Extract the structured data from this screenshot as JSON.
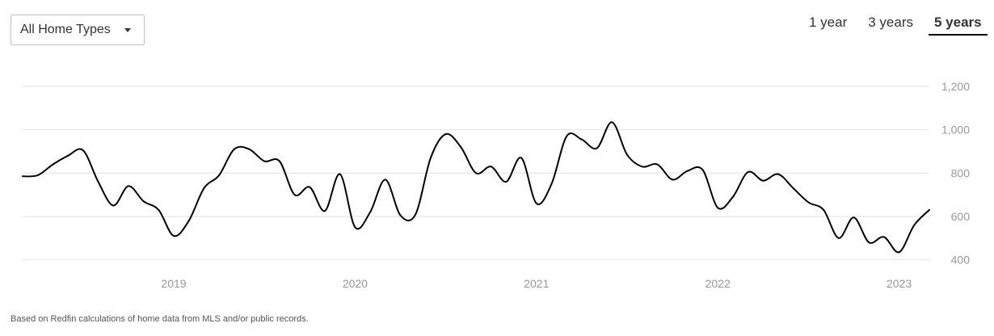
{
  "filter": {
    "selected": "All Home Types",
    "icon": "caret-down-icon"
  },
  "range_tabs": [
    {
      "label": "1 year",
      "active": false
    },
    {
      "label": "3 years",
      "active": false
    },
    {
      "label": "5 years",
      "active": true
    }
  ],
  "footnote": "Based on Redfin calculations of home data from MLS and/or public records.",
  "colors": {
    "line": "#000000",
    "grid": "#e2e2e2",
    "axis_text": "#999999"
  },
  "chart_data": {
    "type": "line",
    "title": "",
    "xlabel": "",
    "ylabel": "",
    "x_ticks": [
      "2019",
      "2020",
      "2021",
      "2022",
      "2023"
    ],
    "y_ticks": [
      {
        "value": 1200,
        "label": "1,200"
      },
      {
        "value": 1000,
        "label": "1,000"
      },
      {
        "value": 800,
        "label": "800"
      },
      {
        "value": 600,
        "label": "600"
      },
      {
        "value": 400,
        "label": "400"
      }
    ],
    "ylim": [
      350,
      1215
    ],
    "xlim": [
      "2018-03",
      "2023-03"
    ],
    "grid": true,
    "series": [
      {
        "x": [
          "2018-03",
          "2018-04",
          "2018-05",
          "2018-06",
          "2018-07",
          "2018-08",
          "2018-09",
          "2018-10",
          "2018-11",
          "2018-12",
          "2019-01",
          "2019-02",
          "2019-03",
          "2019-04",
          "2019-05",
          "2019-06",
          "2019-07",
          "2019-08",
          "2019-09",
          "2019-10",
          "2019-11",
          "2019-12",
          "2020-01",
          "2020-02",
          "2020-03",
          "2020-04",
          "2020-05",
          "2020-06",
          "2020-07",
          "2020-08",
          "2020-09",
          "2020-10",
          "2020-11",
          "2020-12",
          "2021-01",
          "2021-02",
          "2021-03",
          "2021-04",
          "2021-05",
          "2021-06",
          "2021-07",
          "2021-08",
          "2021-09",
          "2021-10",
          "2021-11",
          "2021-12",
          "2022-01",
          "2022-02",
          "2022-03",
          "2022-04",
          "2022-05",
          "2022-06",
          "2022-07",
          "2022-08",
          "2022-09",
          "2022-10",
          "2022-11",
          "2022-12",
          "2023-01",
          "2023-02",
          "2023-03"
        ],
        "values": [
          785,
          790,
          840,
          880,
          905,
          760,
          650,
          740,
          670,
          630,
          510,
          580,
          730,
          790,
          910,
          910,
          855,
          855,
          700,
          735,
          625,
          795,
          550,
          620,
          770,
          605,
          610,
          870,
          980,
          920,
          800,
          830,
          760,
          870,
          660,
          750,
          970,
          955,
          915,
          1035,
          885,
          830,
          840,
          770,
          810,
          815,
          640,
          690,
          805,
          765,
          795,
          730,
          665,
          630,
          500,
          595,
          480,
          505,
          435,
          560,
          630
        ]
      }
    ]
  }
}
